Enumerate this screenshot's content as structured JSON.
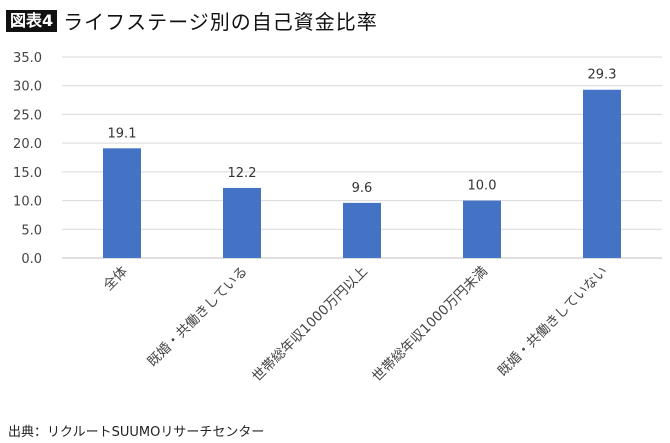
{
  "header": {
    "badge": "図表4",
    "title": "ライフステージ別の自己資金比率"
  },
  "source": "出典：リクルートSUUMOリサーチセンター",
  "chart_data": {
    "type": "bar",
    "categories": [
      "全体",
      "既婚・共働きしている",
      "世帯総年収1000万円以上",
      "世帯総年収1000万円未満",
      "既婚・共働きしていない"
    ],
    "values": [
      19.1,
      12.2,
      9.6,
      10.0,
      29.3
    ],
    "data_labels": [
      "19.1",
      "12.2",
      "9.6",
      "10.0",
      "29.3"
    ],
    "ylim": [
      0,
      35
    ],
    "yticks": [
      "0.0",
      "5.0",
      "10.0",
      "15.0",
      "20.0",
      "25.0",
      "30.0",
      "35.0"
    ],
    "grid": true,
    "bar_color": "#4472C4",
    "title": "",
    "xlabel": "",
    "ylabel": ""
  }
}
